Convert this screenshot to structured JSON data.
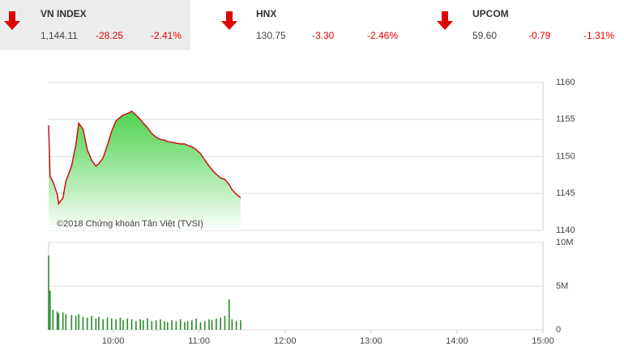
{
  "indices": [
    {
      "name": "VN INDEX",
      "value": "1,144.11",
      "change": "-28.25",
      "percent": "-2.41%"
    },
    {
      "name": "HNX",
      "value": "130.75",
      "change": "-3.30",
      "percent": "-2.46%"
    },
    {
      "name": "UPCOM",
      "value": "59.60",
      "change": "-0.79",
      "percent": "-1.31%"
    }
  ],
  "chart_data": [
    {
      "type": "area",
      "annotation": "©2018 Chứng khoán Tân Việt (TVSI)",
      "color": "#cc1111",
      "fill": "#33cc33",
      "x": [
        "09:15",
        "09:16",
        "09:18",
        "09:21",
        "09:22",
        "09:25",
        "09:27",
        "09:31",
        "09:34",
        "09:36",
        "09:39",
        "09:42",
        "09:45",
        "09:48",
        "09:50",
        "09:53",
        "09:56",
        "09:59",
        "10:02",
        "10:05",
        "10:07",
        "10:10",
        "10:13",
        "10:16",
        "10:19",
        "10:21",
        "10:24",
        "10:27",
        "10:30",
        "10:33",
        "10:36",
        "10:38",
        "10:41",
        "10:44",
        "10:47",
        "10:50",
        "10:52",
        "10:55",
        "10:58",
        "11:01",
        "11:04",
        "11:07",
        "11:09",
        "11:12",
        "11:15",
        "11:18",
        "11:21",
        "11:23",
        "11:26",
        "11:29"
      ],
      "values": [
        1154.2,
        1147.3,
        1146.6,
        1144.9,
        1143.6,
        1144.4,
        1146.6,
        1148.7,
        1151.5,
        1154.5,
        1153.7,
        1150.9,
        1149.5,
        1148.7,
        1149.0,
        1149.8,
        1151.5,
        1153.4,
        1154.8,
        1155.3,
        1155.6,
        1155.8,
        1156.1,
        1155.6,
        1155.0,
        1154.5,
        1153.9,
        1153.1,
        1152.6,
        1152.3,
        1152.2,
        1152.0,
        1151.9,
        1151.8,
        1151.7,
        1151.7,
        1151.5,
        1151.3,
        1150.9,
        1150.4,
        1149.5,
        1148.7,
        1148.2,
        1147.6,
        1147.1,
        1146.9,
        1146.2,
        1145.5,
        1144.9,
        1144.4
      ],
      "xlim": [
        "09:15",
        "15:00"
      ],
      "ylim": [
        1140,
        1160
      ],
      "yticks": [
        1140,
        1145,
        1150,
        1155,
        1160
      ],
      "grid": true
    },
    {
      "type": "bar",
      "color": "#2a8a2a",
      "x": [
        "09:15",
        "09:16",
        "09:18",
        "09:21",
        "09:22",
        "09:25",
        "09:27",
        "09:31",
        "09:34",
        "09:36",
        "09:39",
        "09:42",
        "09:45",
        "09:48",
        "09:50",
        "09:53",
        "09:56",
        "09:59",
        "10:02",
        "10:05",
        "10:07",
        "10:10",
        "10:13",
        "10:16",
        "10:19",
        "10:21",
        "10:24",
        "10:27",
        "10:30",
        "10:33",
        "10:36",
        "10:38",
        "10:41",
        "10:44",
        "10:47",
        "10:50",
        "10:52",
        "10:55",
        "10:58",
        "11:01",
        "11:04",
        "11:07",
        "11:09",
        "11:12",
        "11:15",
        "11:18",
        "11:21",
        "11:23",
        "11:26",
        "11:29"
      ],
      "values": [
        8.5,
        4.5,
        2.3,
        2.1,
        1.9,
        2.0,
        1.8,
        1.7,
        1.6,
        1.8,
        1.5,
        1.4,
        1.6,
        1.3,
        1.5,
        1.2,
        1.4,
        1.3,
        1.2,
        1.4,
        1.1,
        1.3,
        1.2,
        1.0,
        1.2,
        1.1,
        1.3,
        1.0,
        1.1,
        1.2,
        1.0,
        0.9,
        1.1,
        1.0,
        1.2,
        0.9,
        1.0,
        1.1,
        1.3,
        0.9,
        1.0,
        1.2,
        1.1,
        1.3,
        1.4,
        1.6,
        3.5,
        1.2,
        1.0,
        1.1
      ],
      "xlim": [
        "09:15",
        "15:00"
      ],
      "ylim": [
        0,
        10
      ],
      "yticks": [
        {
          "value": 0,
          "label": "0"
        },
        {
          "value": 5,
          "label": "5M"
        },
        {
          "value": 10,
          "label": "10M"
        }
      ],
      "xticks": [
        "10:00",
        "11:00",
        "12:00",
        "13:00",
        "14:00",
        "15:00"
      ],
      "grid": true
    }
  ]
}
